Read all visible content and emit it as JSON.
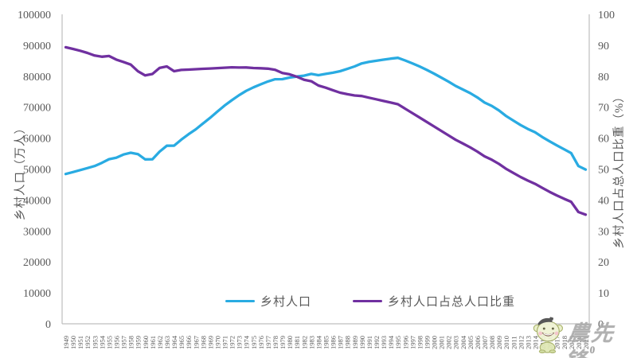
{
  "chart_data": {
    "type": "line",
    "grid": false,
    "legend_position": "bottom",
    "x": [
      1949,
      1950,
      1951,
      1952,
      1953,
      1954,
      1955,
      1956,
      1957,
      1958,
      1959,
      1960,
      1961,
      1962,
      1963,
      1964,
      1965,
      1966,
      1967,
      1968,
      1969,
      1970,
      1971,
      1972,
      1973,
      1974,
      1975,
      1976,
      1977,
      1978,
      1979,
      1980,
      1981,
      1982,
      1983,
      1984,
      1985,
      1986,
      1987,
      1988,
      1989,
      1990,
      1991,
      1992,
      1993,
      1994,
      1995,
      1996,
      1997,
      1998,
      1999,
      2000,
      2001,
      2002,
      2003,
      2004,
      2005,
      2006,
      2007,
      2008,
      2009,
      2010,
      2011,
      2012,
      2013,
      2014,
      2015,
      2016,
      2017,
      2018,
      2019,
      2020,
      2021
    ],
    "series": [
      {
        "name": "乡村人口",
        "axis": "left",
        "color": "#29abe2",
        "values": [
          48402,
          49027,
          49668,
          50319,
          50970,
          52017,
          53180,
          53643,
          54704,
          55273,
          54836,
          53134,
          53152,
          55636,
          57526,
          57549,
          59493,
          61229,
          62820,
          64696,
          66554,
          68568,
          70518,
          72242,
          73866,
          75264,
          76390,
          77376,
          78305,
          79014,
          79047,
          79565,
          79901,
          80174,
          80734,
          80340,
          80757,
          81141,
          81626,
          82365,
          83164,
          84138,
          84620,
          84996,
          85344,
          85681,
          85947,
          85085,
          84177,
          83153,
          82038,
          80837,
          79563,
          78241,
          76851,
          75705,
          74544,
          73160,
          71496,
          70399,
          68938,
          67113,
          65656,
          64222,
          62961,
          61866,
          60346,
          58973,
          57661,
          56401,
          55162,
          50979,
          49835
        ]
      },
      {
        "name": "乡村人口占总人口比重",
        "axis": "right",
        "color": "#7030a0",
        "values": [
          89.36,
          88.82,
          88.22,
          87.54,
          86.69,
          86.31,
          86.52,
          85.38,
          84.61,
          83.75,
          81.59,
          80.25,
          80.71,
          82.67,
          83.16,
          81.63,
          82.02,
          82.14,
          82.26,
          82.38,
          82.5,
          82.62,
          82.74,
          82.87,
          82.8,
          82.84,
          82.66,
          82.56,
          82.45,
          82.08,
          81.04,
          80.61,
          79.84,
          78.87,
          78.38,
          76.99,
          76.29,
          75.48,
          74.68,
          74.19,
          73.79,
          73.59,
          73.06,
          72.54,
          72.01,
          71.49,
          70.96,
          69.52,
          68.09,
          66.65,
          65.22,
          63.78,
          62.34,
          60.91,
          59.47,
          58.24,
          57.01,
          55.66,
          54.11,
          53.01,
          51.66,
          50.05,
          48.73,
          47.43,
          46.27,
          45.23,
          43.9,
          42.65,
          41.48,
          40.42,
          39.4,
          36.11,
          35.28
        ]
      }
    ],
    "left_axis": {
      "label": "乡村人口（万人）",
      "min": 0,
      "max": 100000,
      "step": 10000
    },
    "right_axis": {
      "label": "乡村人口占总人口比重（%）",
      "min": 0,
      "max": 100,
      "step": 10
    }
  },
  "colors": {
    "text": "#595959",
    "axis_line": "#bfbfbf",
    "background": "#ffffff"
  },
  "watermark": {
    "text": "農先锋",
    "superscript": "0"
  }
}
